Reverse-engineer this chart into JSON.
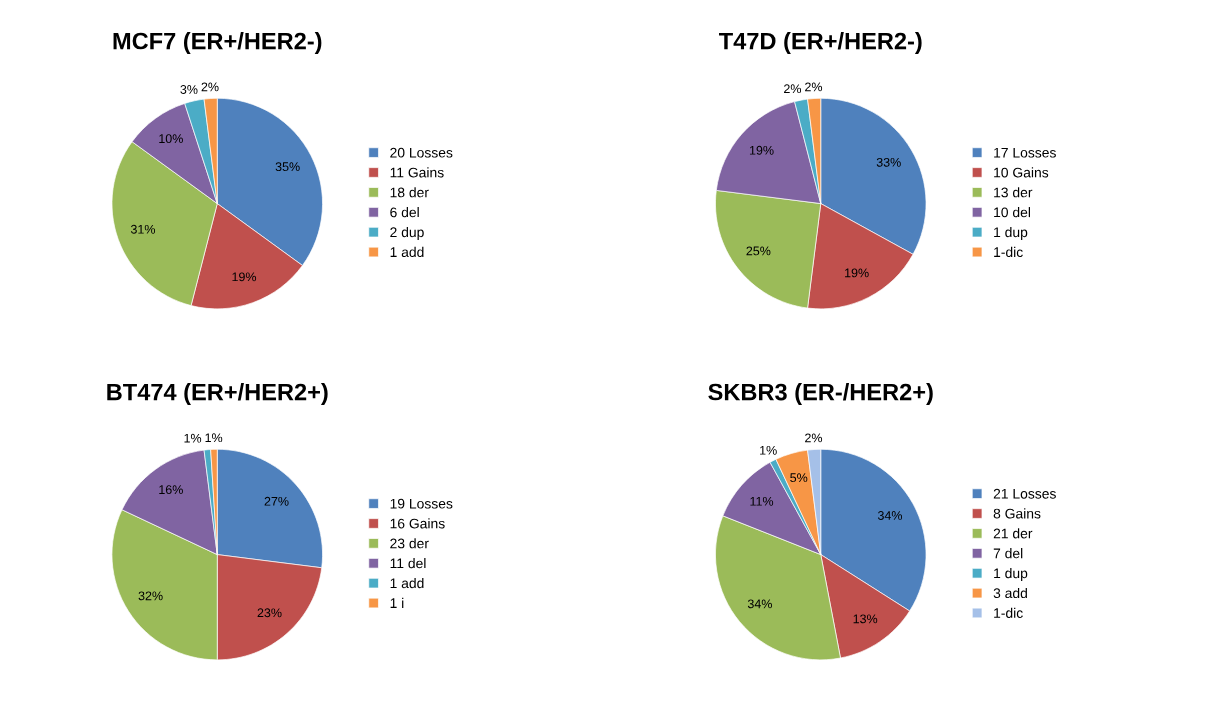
{
  "chart_data": [
    {
      "type": "pie",
      "title": "MCF7 (ER+/HER2-)",
      "categories": [
        "20 Losses",
        "11 Gains",
        "18 der",
        "6 del",
        "2 dup",
        "1 add"
      ],
      "values": [
        35,
        19,
        31,
        10,
        3,
        2
      ],
      "value_labels": [
        "35%",
        "19%",
        "31%",
        "10%",
        "3%",
        "2%"
      ],
      "colors": [
        "#4f81bd",
        "#c0504d",
        "#9bbb59",
        "#8064a2",
        "#4bacc6",
        "#f79646"
      ],
      "legend": "right"
    },
    {
      "type": "pie",
      "title": "T47D (ER+/HER2-)",
      "categories": [
        "17 Losses",
        "10 Gains",
        "13 der",
        "10 del",
        "1 dup",
        "1-dic"
      ],
      "values": [
        33,
        19,
        25,
        19,
        2,
        2
      ],
      "value_labels": [
        "33%",
        "19%",
        "25%",
        "19%",
        "2%",
        "2%"
      ],
      "colors": [
        "#4f81bd",
        "#c0504d",
        "#9bbb59",
        "#8064a2",
        "#4bacc6",
        "#f79646"
      ],
      "legend": "right"
    },
    {
      "type": "pie",
      "title": "BT474 (ER+/HER2+)",
      "categories": [
        "19 Losses",
        "16 Gains",
        "23 der",
        "11 del",
        "1 add",
        "1 i"
      ],
      "values": [
        27,
        23,
        32,
        16,
        1,
        1
      ],
      "value_labels": [
        "27%",
        "23%",
        "32%",
        "16%",
        "1%",
        "1%"
      ],
      "colors": [
        "#4f81bd",
        "#c0504d",
        "#9bbb59",
        "#8064a2",
        "#4bacc6",
        "#f79646"
      ],
      "legend": "right"
    },
    {
      "type": "pie",
      "title": "SKBR3 (ER-/HER2+)",
      "categories": [
        "21 Losses",
        "8 Gains",
        "21 der",
        "7 del",
        "1 dup",
        "3 add",
        "1-dic"
      ],
      "values": [
        34,
        13,
        34,
        11,
        1,
        5,
        2
      ],
      "value_labels": [
        "34%",
        "13%",
        "34%",
        "11%",
        "1%",
        "5%",
        "2%"
      ],
      "colors": [
        "#4f81bd",
        "#c0504d",
        "#9bbb59",
        "#8064a2",
        "#4bacc6",
        "#f79646",
        "#a5c0e8"
      ],
      "legend": "right"
    }
  ]
}
